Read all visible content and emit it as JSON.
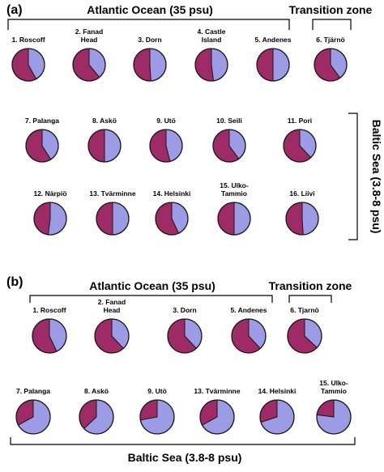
{
  "colors": {
    "primary": "#9e2b66",
    "secondary": "#9b9be6",
    "outline": "#1a1a1a"
  },
  "panel_a": {
    "label": "(a)",
    "atlantic_label": "Atlantic Ocean (35 psu)",
    "transition_label": "Transition zone",
    "baltic_label": "Baltic Sea (3.8-8 psu)"
  },
  "panel_b": {
    "label": "(b)",
    "atlantic_label": "Atlantic Ocean (35 psu)",
    "transition_label": "Transition zone",
    "baltic_label": "Baltic Sea (3.8-8 psu)"
  },
  "chart_data": [
    {
      "panel": "(a)",
      "type": "pie",
      "series": [
        "primary",
        "secondary"
      ],
      "sites": [
        {
          "label": [
            "1. Roscoff"
          ],
          "fractions": [
            0.58,
            0.42
          ]
        },
        {
          "label": [
            "2. Fanad",
            "Head"
          ],
          "fractions": [
            0.61,
            0.39
          ]
        },
        {
          "label": [
            "3. Dorn"
          ],
          "fractions": [
            0.51,
            0.49
          ]
        },
        {
          "label": [
            "4. Castle",
            "Island"
          ],
          "fractions": [
            0.52,
            0.48
          ]
        },
        {
          "label": [
            "5. Andenes"
          ],
          "fractions": [
            0.5,
            0.5
          ]
        },
        {
          "label": [
            "6. Tjärnö"
          ],
          "fractions": [
            0.6,
            0.4
          ]
        },
        {
          "label": [
            "7. Palanga"
          ],
          "fractions": [
            0.59,
            0.41
          ]
        },
        {
          "label": [
            "8. Askö"
          ],
          "fractions": [
            0.5,
            0.5
          ]
        },
        {
          "label": [
            "9. Utö"
          ],
          "fractions": [
            0.54,
            0.46
          ]
        },
        {
          "label": [
            "10. Seili"
          ],
          "fractions": [
            0.6,
            0.4
          ]
        },
        {
          "label": [
            "11. Pori"
          ],
          "fractions": [
            0.62,
            0.38
          ]
        },
        {
          "label": [
            "12. Närpiö"
          ],
          "fractions": [
            0.48,
            0.52
          ]
        },
        {
          "label": [
            "13. Tvärminne"
          ],
          "fractions": [
            0.5,
            0.5
          ]
        },
        {
          "label": [
            "14. Helsinki"
          ],
          "fractions": [
            0.57,
            0.43
          ]
        },
        {
          "label": [
            "15. Ulko-",
            "Tammio"
          ],
          "fractions": [
            0.5,
            0.5
          ]
        },
        {
          "label": [
            "16. Liivi"
          ],
          "fractions": [
            0.51,
            0.49
          ]
        }
      ]
    },
    {
      "panel": "(b)",
      "type": "pie",
      "series": [
        "primary",
        "secondary"
      ],
      "sites": [
        {
          "label": [
            "1. Roscoff"
          ],
          "fractions": [
            0.57,
            0.43
          ]
        },
        {
          "label": [
            "2. Fanad",
            "Head"
          ],
          "fractions": [
            0.62,
            0.38
          ]
        },
        {
          "label": [
            "3. Dorn"
          ],
          "fractions": [
            0.62,
            0.38
          ]
        },
        {
          "label": [
            "5. Andenes"
          ],
          "fractions": [
            0.62,
            0.38
          ]
        },
        {
          "label": [
            "6. Tjarnö"
          ],
          "fractions": [
            0.63,
            0.37
          ]
        },
        {
          "label": [
            "7. Palanga"
          ],
          "fractions": [
            0.33,
            0.67
          ]
        },
        {
          "label": [
            "8. Askö"
          ],
          "fractions": [
            0.37,
            0.63
          ]
        },
        {
          "label": [
            "9. Utö"
          ],
          "fractions": [
            0.28,
            0.72
          ]
        },
        {
          "label": [
            "13. Tvärminne"
          ],
          "fractions": [
            0.33,
            0.67
          ]
        },
        {
          "label": [
            "14. Helsinki"
          ],
          "fractions": [
            0.3,
            0.7
          ]
        },
        {
          "label": [
            "15. Ulko-",
            "Tammio"
          ],
          "fractions": [
            0.23,
            0.77
          ]
        }
      ]
    }
  ]
}
